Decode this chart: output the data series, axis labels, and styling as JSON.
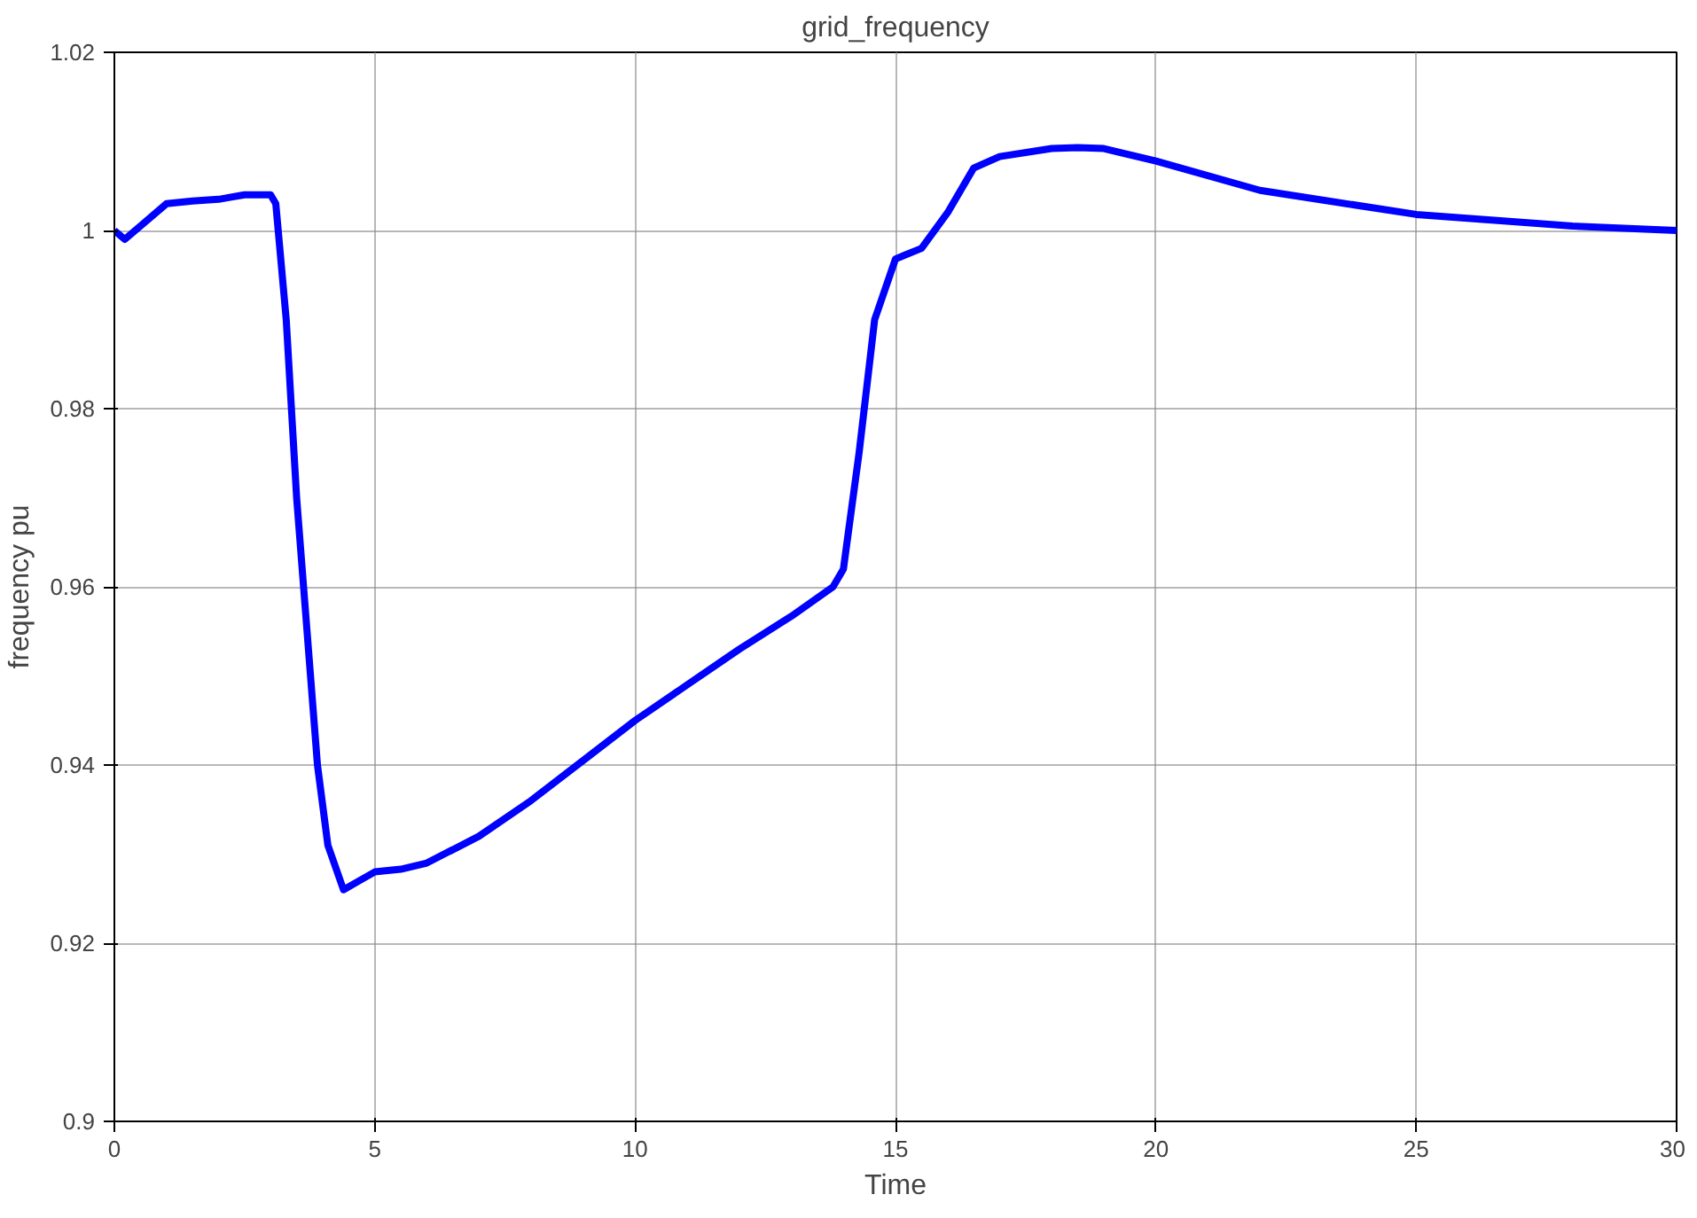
{
  "chart_data": {
    "type": "line",
    "title": "grid_frequency",
    "xlabel": "Time",
    "ylabel": "frequency pu",
    "xlim": [
      0,
      30
    ],
    "ylim": [
      0.9,
      1.02
    ],
    "xticks": [
      0,
      5,
      10,
      15,
      20,
      25,
      30
    ],
    "yticks": [
      {
        "value": 0.9,
        "label": "0.9"
      },
      {
        "value": 0.92,
        "label": "0.92"
      },
      {
        "value": 0.94,
        "label": "0.94"
      },
      {
        "value": 0.96,
        "label": "0.96"
      },
      {
        "value": 0.98,
        "label": "0.98"
      },
      {
        "value": 1.0,
        "label": "1"
      },
      {
        "value": 1.02,
        "label": "1.02"
      }
    ],
    "grid": true,
    "marker": "none",
    "line_style": "solid",
    "series": [
      {
        "color": "#0000ff",
        "x": [
          0,
          0.2,
          0.5,
          1,
          1.5,
          2,
          2.5,
          3,
          3.1,
          3.3,
          3.5,
          3.7,
          3.9,
          4.1,
          4.4,
          4.7,
          5,
          5.5,
          6,
          7,
          8,
          9,
          10,
          11,
          12,
          13,
          13.8,
          14,
          14.3,
          14.6,
          15,
          15.5,
          16,
          16.5,
          17,
          18,
          18.5,
          19,
          20,
          22,
          25,
          28,
          30
        ],
        "values": [
          1.0,
          0.999,
          1.0005,
          1.003,
          1.0033,
          1.0035,
          1.004,
          1.004,
          1.003,
          0.99,
          0.97,
          0.955,
          0.94,
          0.931,
          0.926,
          0.927,
          0.928,
          0.9283,
          0.929,
          0.932,
          0.936,
          0.9405,
          0.945,
          0.949,
          0.953,
          0.9567,
          0.96,
          0.962,
          0.975,
          0.99,
          0.9968,
          0.998,
          1.002,
          1.007,
          1.0083,
          1.0092,
          1.0093,
          1.0092,
          1.0078,
          1.0045,
          1.0018,
          1.0005,
          1.0
        ]
      }
    ]
  }
}
